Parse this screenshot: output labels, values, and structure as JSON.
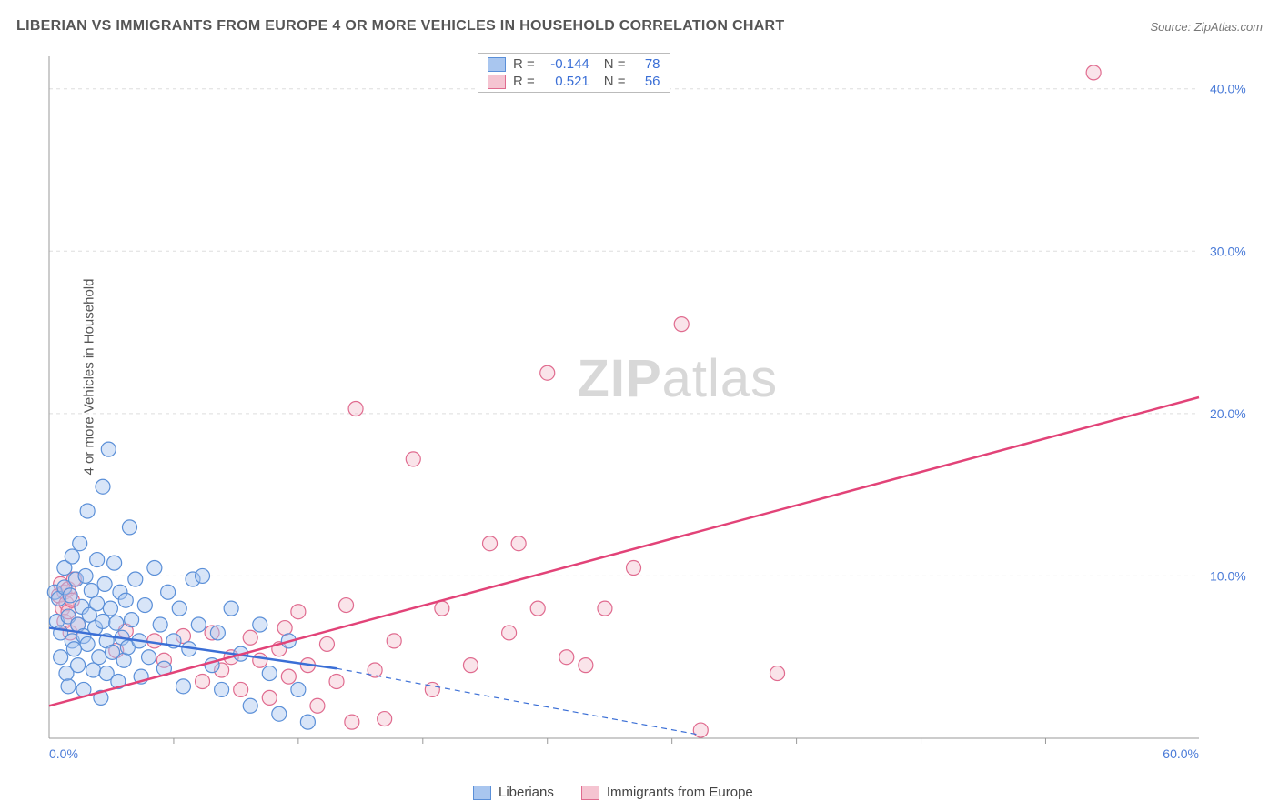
{
  "title": "LIBERIAN VS IMMIGRANTS FROM EUROPE 4 OR MORE VEHICLES IN HOUSEHOLD CORRELATION CHART",
  "source": "Source: ZipAtlas.com",
  "y_axis_label": "4 or more Vehicles in Household",
  "watermark": {
    "bold": "ZIP",
    "rest": "atlas"
  },
  "colors": {
    "series_a_fill": "#a9c6ef",
    "series_a_stroke": "#5a8fd8",
    "series_b_fill": "#f5c4d1",
    "series_b_stroke": "#e06b8f",
    "trend_a": "#3b6fd6",
    "trend_b": "#e24378",
    "grid": "#dddddd",
    "axis": "#999999",
    "tick_text": "#4a7bd8",
    "title_text": "#555555",
    "background": "#ffffff"
  },
  "chart": {
    "type": "scatter",
    "xlim": [
      0,
      60
    ],
    "ylim": [
      0,
      42
    ],
    "x_ticks": [
      0,
      60
    ],
    "x_tick_labels": [
      "0.0%",
      "60.0%"
    ],
    "x_minor_ticks": [
      6.5,
      13,
      19.5,
      26,
      32.5,
      39,
      45.5,
      52
    ],
    "y_ticks": [
      10,
      20,
      30,
      40
    ],
    "y_tick_labels": [
      "10.0%",
      "20.0%",
      "30.0%",
      "40.0%"
    ],
    "marker_radius": 8,
    "marker_fill_opacity": 0.45,
    "marker_stroke_width": 1.2,
    "trend_line_width": 2.5,
    "grid_dash": "4,4"
  },
  "series_a": {
    "name": "Liberians",
    "R": "-0.144",
    "N": "78",
    "trend": {
      "x1": 0,
      "y1": 6.8,
      "x2": 15,
      "y2": 4.3,
      "dash_x2": 34,
      "dash_y2": 0.2
    },
    "points": [
      [
        0.3,
        9.0
      ],
      [
        0.4,
        7.2
      ],
      [
        0.5,
        8.6
      ],
      [
        0.6,
        5.0
      ],
      [
        0.6,
        6.5
      ],
      [
        0.8,
        9.3
      ],
      [
        0.8,
        10.5
      ],
      [
        0.9,
        4.0
      ],
      [
        1.0,
        7.5
      ],
      [
        1.0,
        3.2
      ],
      [
        1.1,
        8.8
      ],
      [
        1.2,
        6.0
      ],
      [
        1.2,
        11.2
      ],
      [
        1.3,
        5.5
      ],
      [
        1.4,
        9.8
      ],
      [
        1.5,
        7.0
      ],
      [
        1.5,
        4.5
      ],
      [
        1.6,
        12.0
      ],
      [
        1.7,
        8.1
      ],
      [
        1.8,
        6.3
      ],
      [
        1.8,
        3.0
      ],
      [
        1.9,
        10.0
      ],
      [
        2.0,
        5.8
      ],
      [
        2.0,
        14.0
      ],
      [
        2.1,
        7.6
      ],
      [
        2.2,
        9.1
      ],
      [
        2.3,
        4.2
      ],
      [
        2.4,
        6.8
      ],
      [
        2.5,
        11.0
      ],
      [
        2.5,
        8.3
      ],
      [
        2.6,
        5.0
      ],
      [
        2.7,
        2.5
      ],
      [
        2.8,
        7.2
      ],
      [
        2.8,
        15.5
      ],
      [
        2.9,
        9.5
      ],
      [
        3.0,
        6.0
      ],
      [
        3.0,
        4.0
      ],
      [
        3.1,
        17.8
      ],
      [
        3.2,
        8.0
      ],
      [
        3.3,
        5.3
      ],
      [
        3.4,
        10.8
      ],
      [
        3.5,
        7.1
      ],
      [
        3.6,
        3.5
      ],
      [
        3.7,
        9.0
      ],
      [
        3.8,
        6.2
      ],
      [
        3.9,
        4.8
      ],
      [
        4.0,
        8.5
      ],
      [
        4.1,
        5.6
      ],
      [
        4.2,
        13.0
      ],
      [
        4.3,
        7.3
      ],
      [
        4.5,
        9.8
      ],
      [
        4.7,
        6.0
      ],
      [
        4.8,
        3.8
      ],
      [
        5.0,
        8.2
      ],
      [
        5.2,
        5.0
      ],
      [
        5.5,
        10.5
      ],
      [
        5.8,
        7.0
      ],
      [
        6.0,
        4.3
      ],
      [
        6.2,
        9.0
      ],
      [
        6.5,
        6.0
      ],
      [
        6.8,
        8.0
      ],
      [
        7.0,
        3.2
      ],
      [
        7.3,
        5.5
      ],
      [
        7.5,
        9.8
      ],
      [
        7.8,
        7.0
      ],
      [
        8.0,
        10.0
      ],
      [
        8.5,
        4.5
      ],
      [
        8.8,
        6.5
      ],
      [
        9.0,
        3.0
      ],
      [
        9.5,
        8.0
      ],
      [
        10.0,
        5.2
      ],
      [
        10.5,
        2.0
      ],
      [
        11.0,
        7.0
      ],
      [
        11.5,
        4.0
      ],
      [
        12.0,
        1.5
      ],
      [
        12.5,
        6.0
      ],
      [
        13.0,
        3.0
      ],
      [
        13.5,
        1.0
      ]
    ]
  },
  "series_b": {
    "name": "Immigrants from Europe",
    "R": "0.521",
    "N": "56",
    "trend": {
      "x1": 0,
      "y1": 2.0,
      "x2": 60,
      "y2": 21.0
    },
    "points": [
      [
        0.5,
        8.8
      ],
      [
        0.6,
        9.5
      ],
      [
        0.7,
        8.0
      ],
      [
        0.8,
        7.2
      ],
      [
        0.8,
        9.0
      ],
      [
        0.9,
        8.3
      ],
      [
        1.0,
        7.8
      ],
      [
        1.0,
        9.2
      ],
      [
        1.1,
        6.5
      ],
      [
        1.2,
        8.5
      ],
      [
        1.3,
        9.8
      ],
      [
        1.5,
        7.0
      ],
      [
        3.5,
        5.4
      ],
      [
        4.0,
        6.6
      ],
      [
        5.5,
        6.0
      ],
      [
        6.0,
        4.8
      ],
      [
        7.0,
        6.3
      ],
      [
        8.0,
        3.5
      ],
      [
        8.5,
        6.5
      ],
      [
        9.0,
        4.2
      ],
      [
        9.5,
        5.0
      ],
      [
        10.0,
        3.0
      ],
      [
        10.5,
        6.2
      ],
      [
        11.0,
        4.8
      ],
      [
        11.5,
        2.5
      ],
      [
        12.0,
        5.5
      ],
      [
        12.5,
        3.8
      ],
      [
        13.0,
        7.8
      ],
      [
        13.5,
        4.5
      ],
      [
        14.0,
        2.0
      ],
      [
        14.5,
        5.8
      ],
      [
        15.0,
        3.5
      ],
      [
        15.5,
        8.2
      ],
      [
        16.0,
        20.3
      ],
      [
        17.0,
        4.2
      ],
      [
        17.5,
        1.2
      ],
      [
        18.0,
        6.0
      ],
      [
        19.0,
        17.2
      ],
      [
        20.0,
        3.0
      ],
      [
        20.5,
        8.0
      ],
      [
        22.0,
        4.5
      ],
      [
        23.0,
        12.0
      ],
      [
        24.0,
        6.5
      ],
      [
        24.5,
        12.0
      ],
      [
        25.5,
        8.0
      ],
      [
        26.0,
        22.5
      ],
      [
        27.0,
        5.0
      ],
      [
        28.0,
        4.5
      ],
      [
        29.0,
        8.0
      ],
      [
        30.5,
        10.5
      ],
      [
        33.0,
        25.5
      ],
      [
        34.0,
        0.5
      ],
      [
        38.0,
        4.0
      ],
      [
        54.5,
        41.0
      ],
      [
        15.8,
        1.0
      ],
      [
        12.3,
        6.8
      ]
    ]
  },
  "stats_legend": [
    {
      "swatch_fill": "#a9c6ef",
      "swatch_stroke": "#5a8fd8",
      "R": "-0.144",
      "N": "78"
    },
    {
      "swatch_fill": "#f5c4d1",
      "swatch_stroke": "#e06b8f",
      "R": "0.521",
      "N": "56"
    }
  ],
  "bottom_legend": [
    {
      "swatch_fill": "#a9c6ef",
      "swatch_stroke": "#5a8fd8",
      "label": "Liberians"
    },
    {
      "swatch_fill": "#f5c4d1",
      "swatch_stroke": "#e06b8f",
      "label": "Immigrants from Europe"
    }
  ]
}
